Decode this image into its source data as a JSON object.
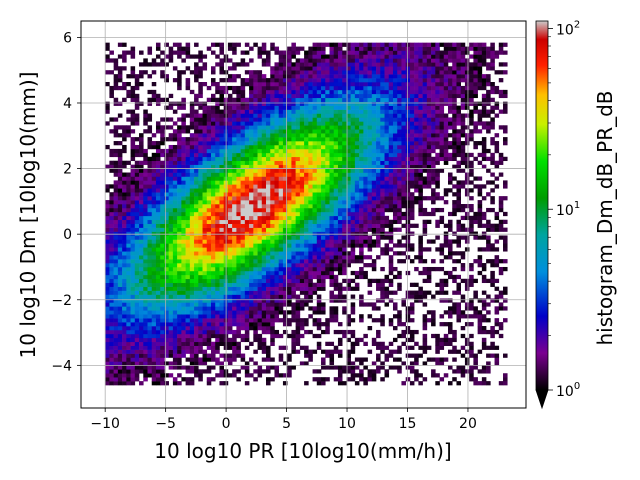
{
  "chart_data": {
    "type": "heatmap",
    "title": "",
    "xlabel": "10 log10 PR [10log10(mm/h)]",
    "ylabel": "10 log10 Dm [10log10(mm)]",
    "xlim": [
      -12,
      24.8
    ],
    "ylim": [
      -5.3,
      6.5
    ],
    "xticks": [
      -10,
      -5,
      0,
      5,
      10,
      15,
      20
    ],
    "yticks": [
      -4,
      -2,
      0,
      2,
      4,
      6
    ],
    "x_tick_labels": [
      "−10",
      "−5",
      "0",
      "5",
      "10",
      "15",
      "20"
    ],
    "y_tick_labels": [
      "−4",
      "−2",
      "0",
      "2",
      "4",
      "6"
    ],
    "grid": true,
    "colormap": "nipy_spectral",
    "colorbar": {
      "label": "histogram_Dm_dB_PR_dB",
      "scale": "log",
      "vmin": 1,
      "vmax": 110,
      "tick_labels": [
        {
          "base": "10",
          "exp": "0",
          "value": 1
        },
        {
          "base": "10",
          "exp": "1",
          "value": 10
        },
        {
          "base": "10",
          "exp": "2",
          "value": 100
        }
      ],
      "extend": "min"
    },
    "distribution": {
      "description_values": "2D histogram of counts; densest core centered near PR=2, Dm=0.8 with peak counts ~100",
      "core_center": [
        2,
        0.8
      ],
      "orientation_slope": 0.22,
      "peak_count": 100,
      "x_extent": [
        -10,
        23
      ],
      "y_extent": [
        -4.6,
        5.8
      ],
      "bin_width": [
        0.35,
        0.12
      ]
    }
  }
}
